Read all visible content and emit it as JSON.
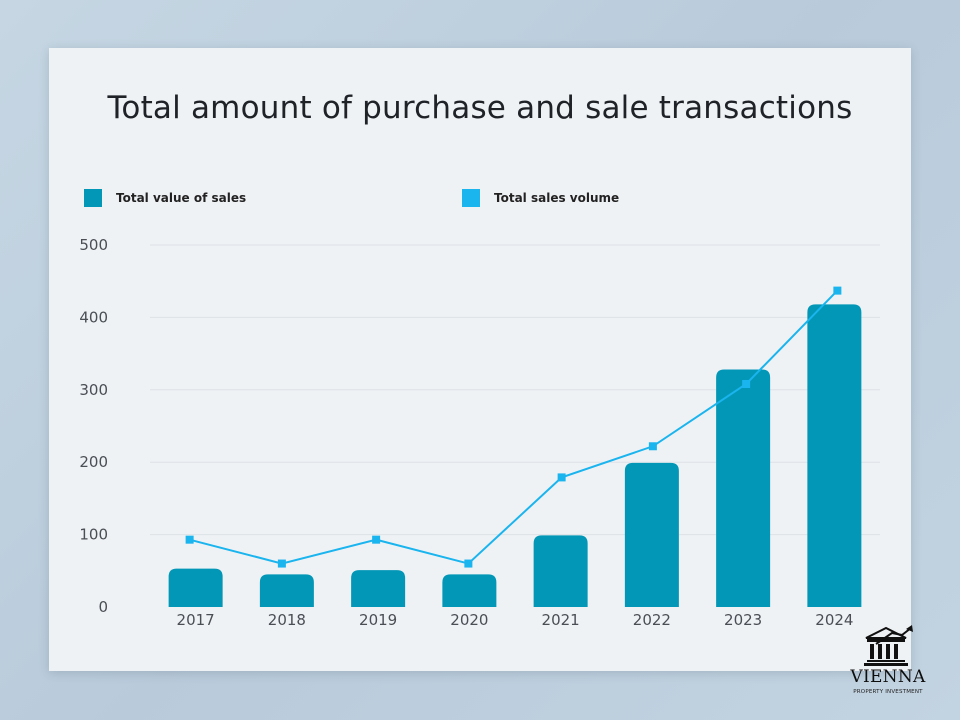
{
  "chart_data": {
    "type": "bar",
    "title": "Total amount of purchase and sale transactions",
    "categories": [
      "2017",
      "2018",
      "2019",
      "2020",
      "2021",
      "2022",
      "2023",
      "2024"
    ],
    "series": [
      {
        "name": "Total value of sales",
        "type": "bar",
        "color": "#0397b7",
        "values": [
          53,
          45,
          51,
          45,
          99,
          199,
          328,
          418
        ]
      },
      {
        "name": "Total sales volume",
        "type": "line",
        "color": "#1ab4ee",
        "values": [
          93,
          60,
          93,
          60,
          179,
          222,
          308,
          437
        ]
      }
    ],
    "yticks": [
      0,
      100,
      200,
      300,
      400,
      500
    ],
    "ylim": [
      0,
      500
    ],
    "xlabel": "",
    "ylabel": "",
    "legend_position": "top"
  },
  "logo": {
    "name": "VIENNA",
    "subtitle": "PROPERTY INVESTMENT",
    "icon": "building-growth-icon"
  }
}
